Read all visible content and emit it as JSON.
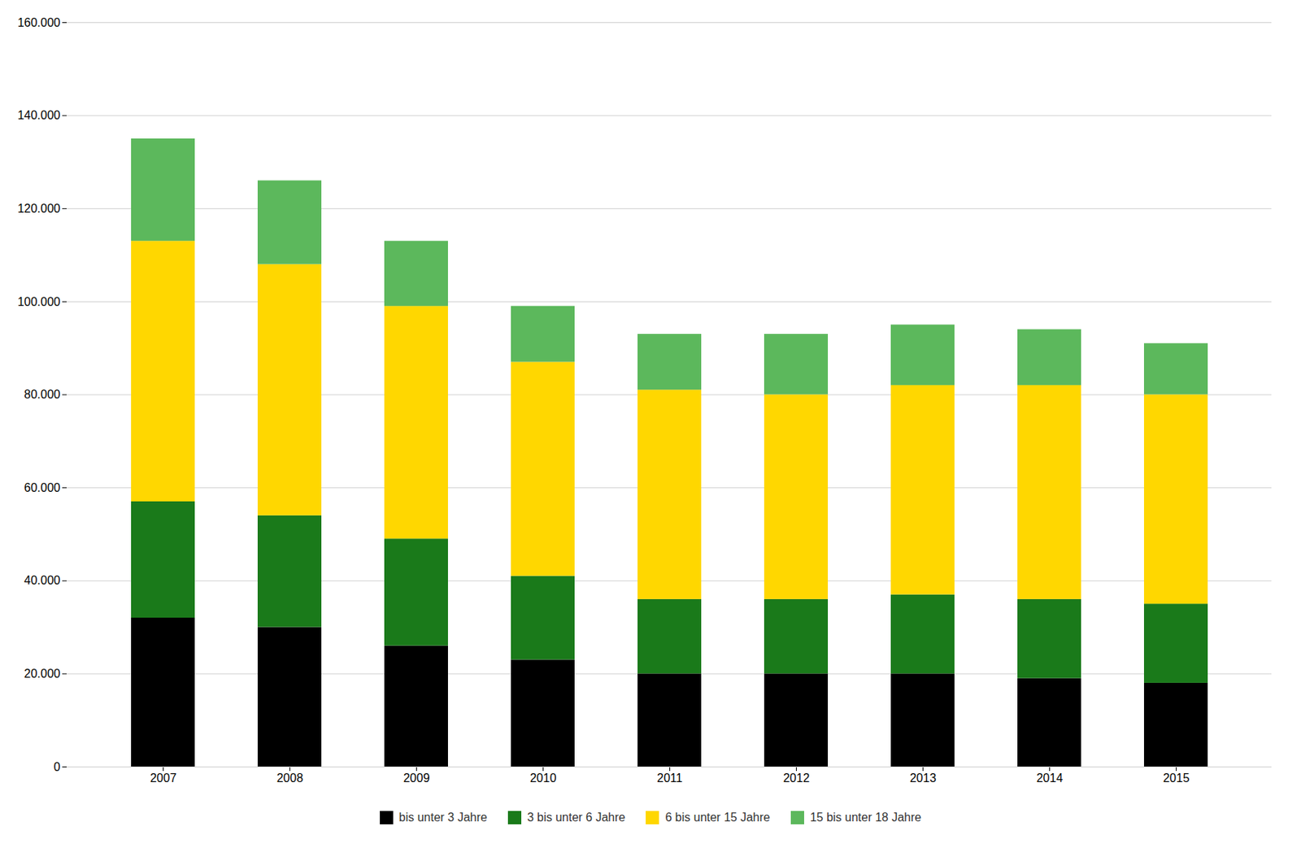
{
  "chart_data": {
    "type": "bar",
    "stacked": true,
    "categories": [
      "2007",
      "2008",
      "2009",
      "2010",
      "2011",
      "2012",
      "2013",
      "2014",
      "2015"
    ],
    "series": [
      {
        "name": "bis unter 3 Jahre",
        "color": "#000000",
        "values": [
          32000,
          30000,
          26000,
          23000,
          20000,
          20000,
          20000,
          19000,
          18000
        ]
      },
      {
        "name": "3 bis unter 6 Jahre",
        "color": "#1a7a1a",
        "values": [
          25000,
          24000,
          23000,
          18000,
          16000,
          16000,
          17000,
          17000,
          17000
        ]
      },
      {
        "name": "6 bis unter 15 Jahre",
        "color": "#FFD700",
        "values": [
          56000,
          54000,
          50000,
          46000,
          45000,
          44000,
          45000,
          46000,
          45000
        ]
      },
      {
        "name": "15 bis unter 18 Jahre",
        "color": "#5cb85c",
        "values": [
          22000,
          18000,
          14000,
          12000,
          12000,
          13000,
          13000,
          12000,
          11000
        ]
      }
    ],
    "ylim": [
      0,
      160000
    ],
    "yticks": [
      0,
      {
        "value": 20000,
        "label": "20.000"
      },
      {
        "value": 40000,
        "label": "40.000"
      },
      {
        "value": 60000,
        "label": "60.000"
      },
      {
        "value": 80000,
        "label": "80.000"
      },
      {
        "value": 100000,
        "label": "100.000"
      },
      {
        "value": 120000,
        "label": "120.000"
      },
      {
        "value": 140000,
        "label": "140.000"
      },
      {
        "value": 160000,
        "label": "160.000"
      }
    ],
    "grid": true,
    "legend": "bottom"
  }
}
